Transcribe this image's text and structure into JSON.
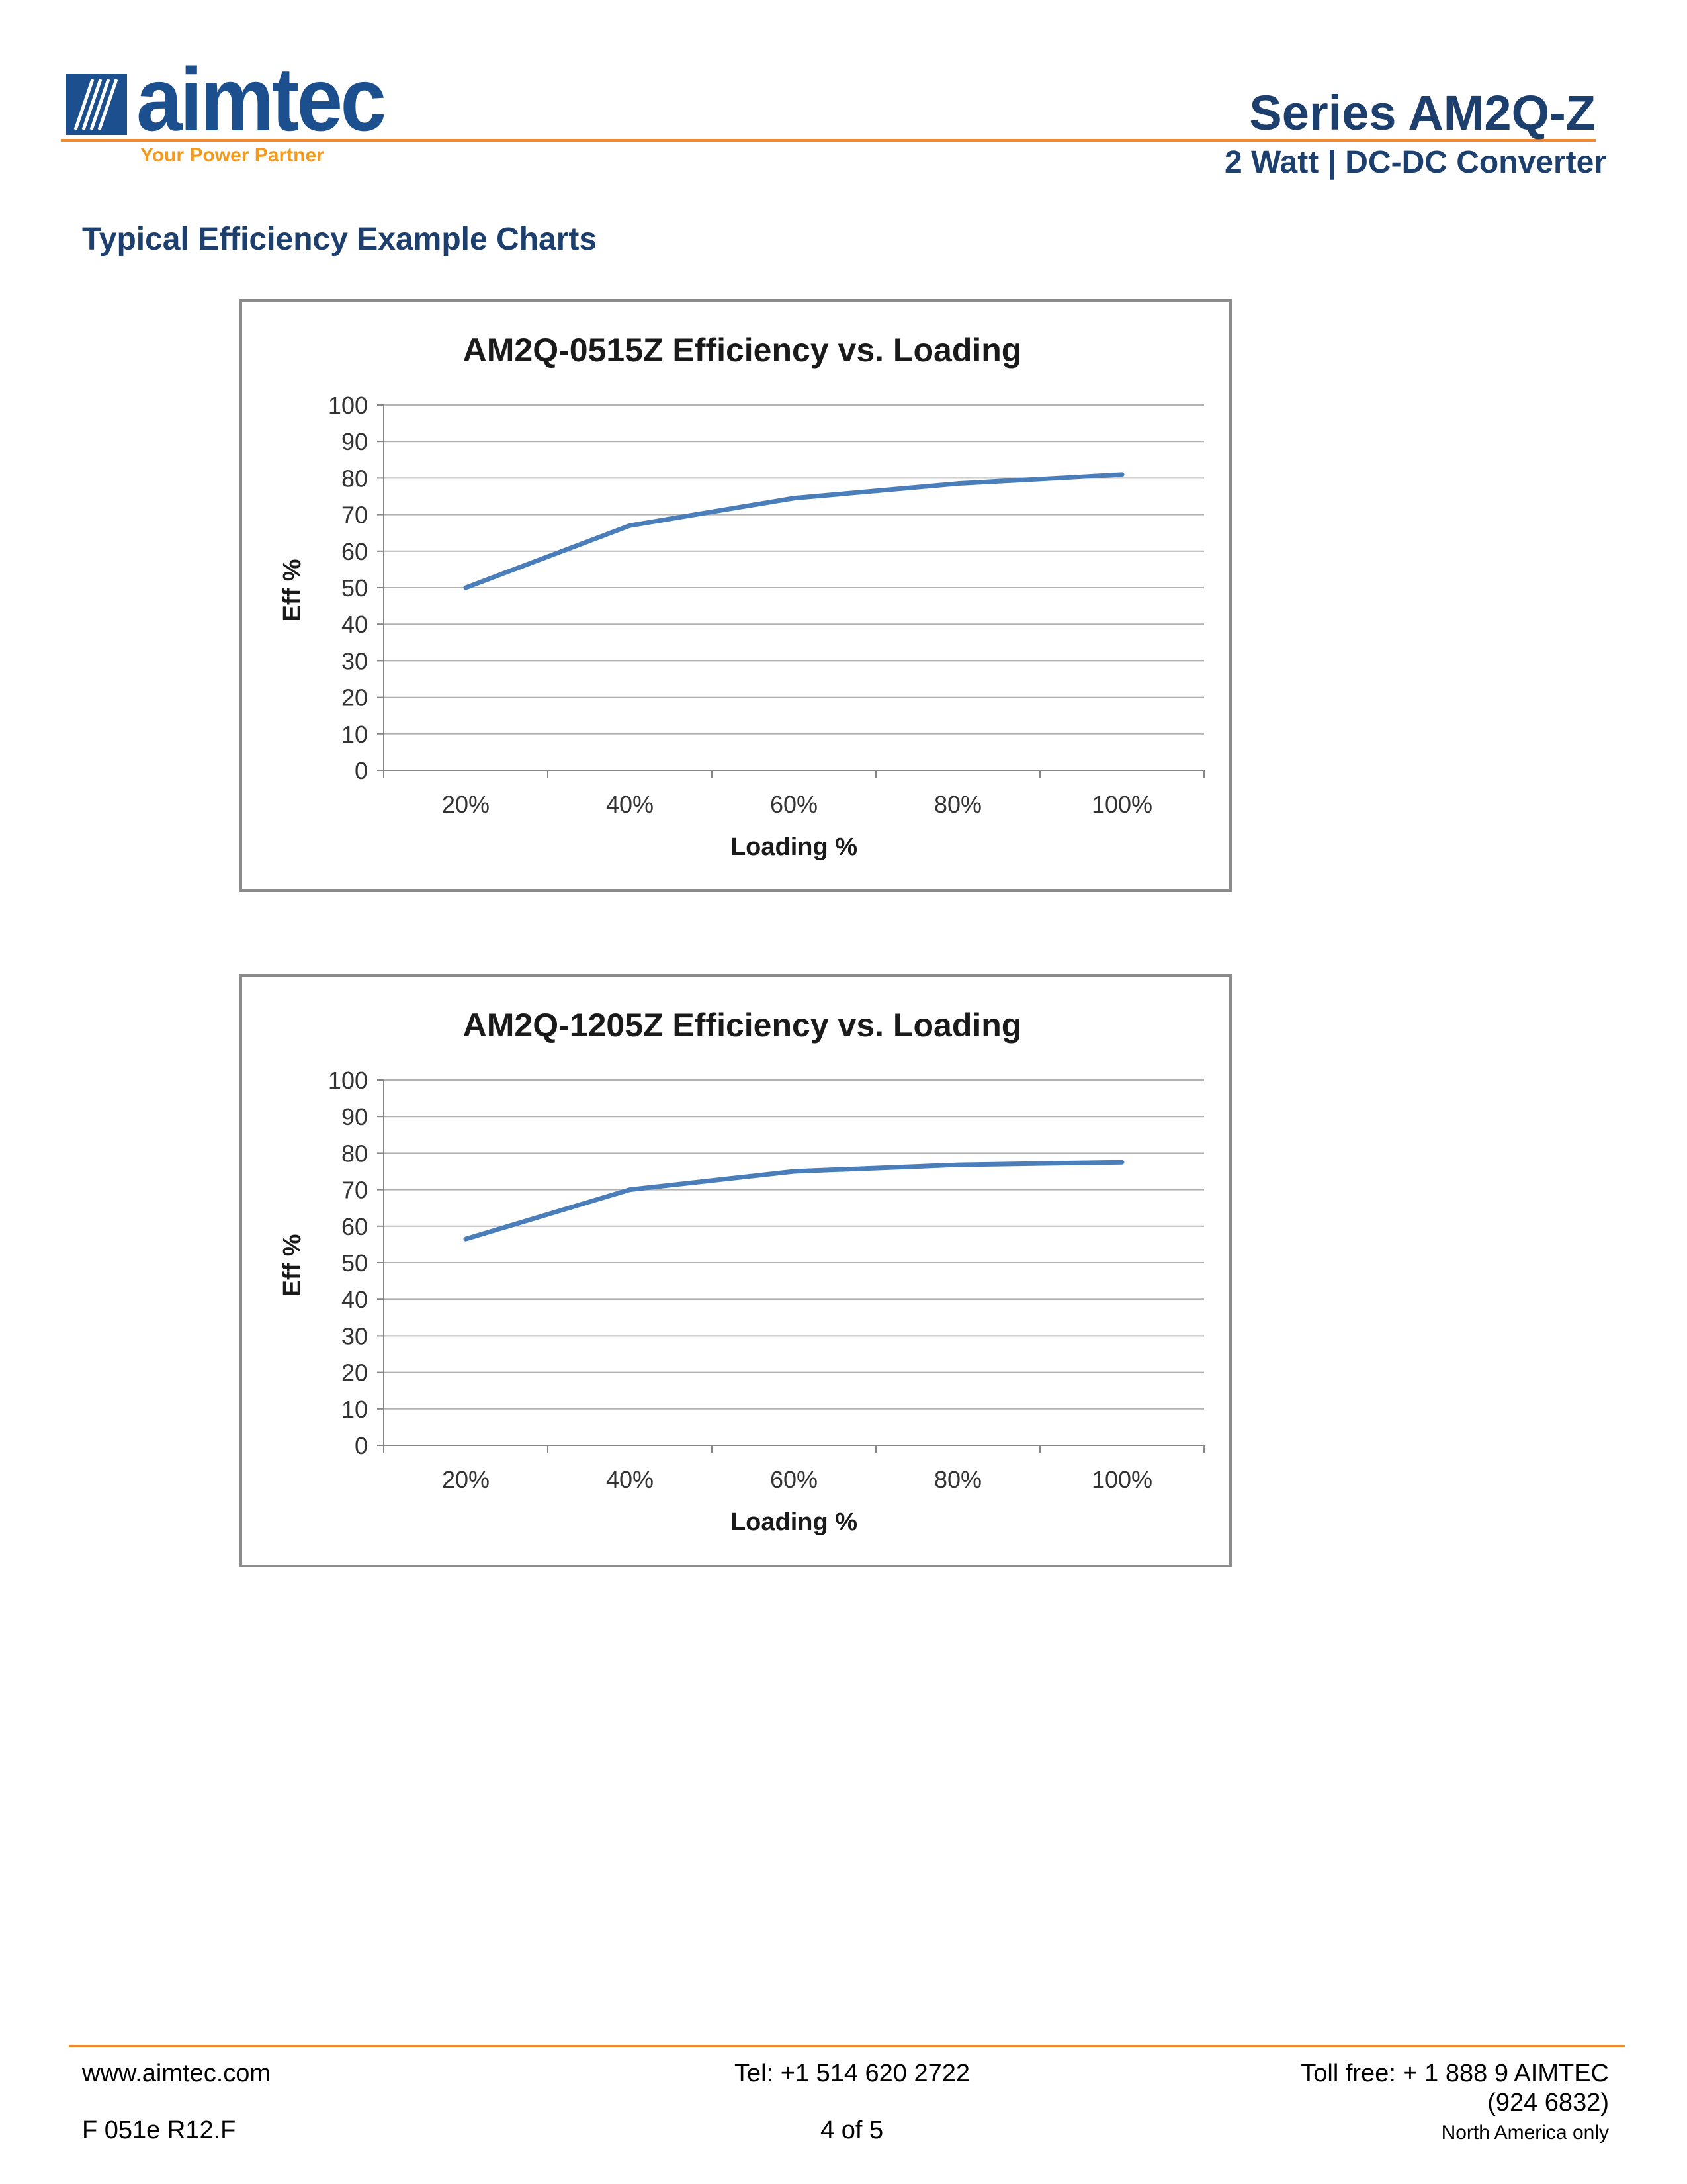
{
  "header": {
    "logo_text": "aimtec",
    "logo_tagline": "Your Power Partner",
    "series_title": "Series AM2Q-Z",
    "series_subtitle": "2 Watt | DC-DC Converter"
  },
  "section_title": "Typical Efficiency Example Charts",
  "colors": {
    "brand_blue": "#1c4f8d",
    "accent_orange": "#f08a2c",
    "series_line": "#4a7ebb"
  },
  "chart_data": [
    {
      "type": "line",
      "title": "AM2Q-0515Z Efficiency vs. Loading",
      "xlabel": "Loading %",
      "ylabel": "Eff %",
      "categories": [
        "20%",
        "40%",
        "60%",
        "80%",
        "100%"
      ],
      "values": [
        50,
        67,
        74.5,
        78.5,
        81
      ],
      "ylim": [
        0,
        100
      ],
      "yticks": [
        0,
        10,
        20,
        30,
        40,
        50,
        60,
        70,
        80,
        90,
        100
      ],
      "grid": true
    },
    {
      "type": "line",
      "title": "AM2Q-1205Z Efficiency vs. Loading",
      "xlabel": "Loading %",
      "ylabel": "Eff %",
      "categories": [
        "20%",
        "40%",
        "60%",
        "80%",
        "100%"
      ],
      "values": [
        56.5,
        70,
        75,
        76.8,
        77.5
      ],
      "ylim": [
        0,
        100
      ],
      "yticks": [
        0,
        10,
        20,
        30,
        40,
        50,
        60,
        70,
        80,
        90,
        100
      ],
      "grid": true
    }
  ],
  "footer": {
    "website": "www.aimtec.com",
    "tel": "Tel: +1 514 620 2722",
    "tollfree": "Toll free: + 1 888 9 AIMTEC",
    "tollfree_digits": "(924 6832)",
    "region": "North America only",
    "form_code": "F 051e R12.F",
    "page": "4 of 5"
  }
}
